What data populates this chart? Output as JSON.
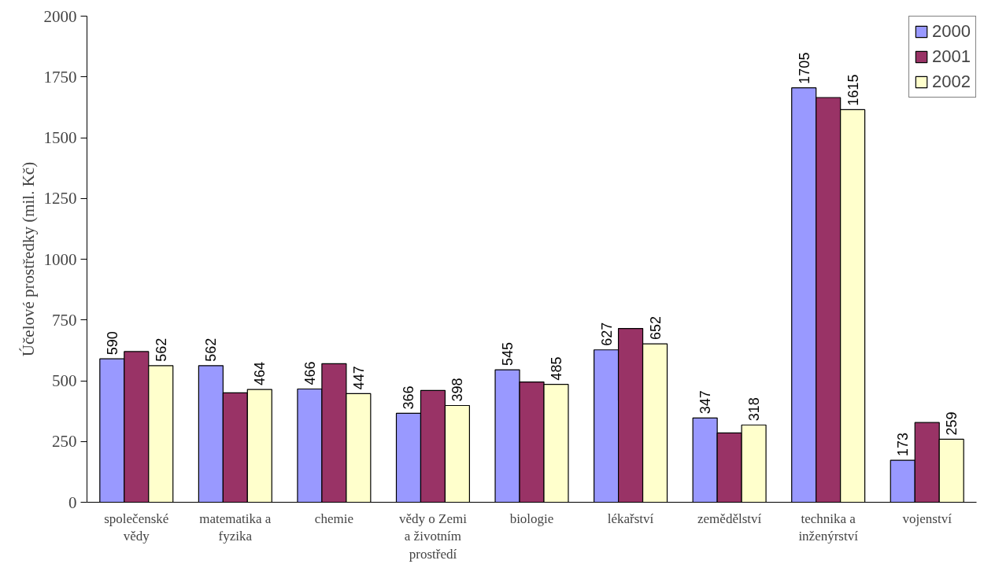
{
  "chart_data": {
    "type": "bar",
    "ylabel": "Účelové prostředky (mil. Kč)",
    "categories": [
      "společenské vědy",
      "matematika a fyzika",
      "chemie",
      "vědy o Zemi a životním prostředí",
      "biologie",
      "lékařství",
      "zemědělství",
      "technika a inženýrství",
      "vojenství"
    ],
    "series": [
      {
        "name": "2000",
        "color": "#9999ff",
        "values": [
          590,
          562,
          466,
          366,
          545,
          627,
          347,
          1705,
          173
        ],
        "value_labels": [
          "590",
          "562",
          "466",
          "366",
          "545",
          "627",
          "347",
          "1705",
          "173"
        ]
      },
      {
        "name": "2001",
        "color": "#993366",
        "values": [
          620,
          450,
          570,
          460,
          495,
          715,
          285,
          1665,
          328
        ]
      },
      {
        "name": "2002",
        "color": "#ffffcc",
        "values": [
          562,
          464,
          447,
          398,
          485,
          652,
          318,
          1615,
          259
        ],
        "value_labels": [
          "562",
          "464",
          "447",
          "398",
          "485",
          "652",
          "318",
          "1615",
          "259"
        ]
      }
    ],
    "ylim": [
      0,
      2000
    ],
    "yticks": [
      0,
      250,
      500,
      750,
      1000,
      1250,
      1500,
      1750,
      2000
    ],
    "grid": false,
    "legend": "top right"
  }
}
